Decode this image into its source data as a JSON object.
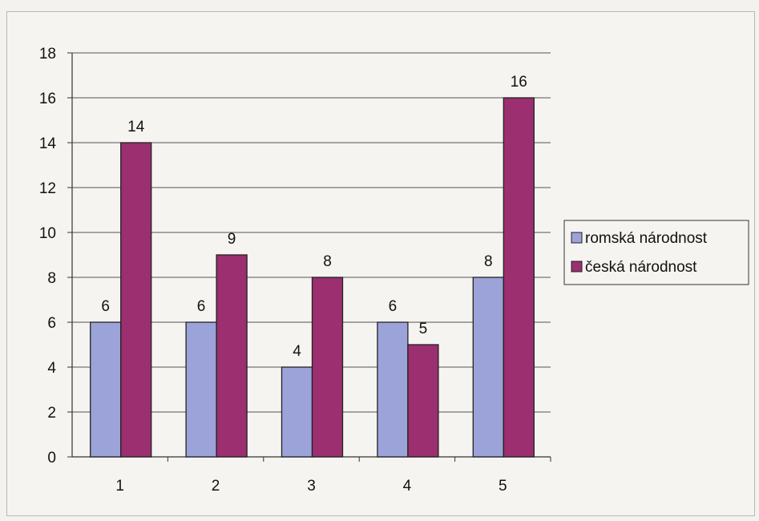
{
  "chart_data": {
    "type": "bar",
    "title": "",
    "xlabel": "",
    "ylabel": "",
    "categories": [
      "1",
      "2",
      "3",
      "4",
      "5"
    ],
    "series": [
      {
        "name": "romská národnost",
        "values": [
          6,
          6,
          4,
          6,
          8
        ],
        "color": "#9ca3d9"
      },
      {
        "name": "česká národnost",
        "values": [
          14,
          9,
          8,
          5,
          16
        ],
        "color": "#9b2f6f"
      }
    ],
    "ylim": [
      0,
      18
    ],
    "yticks": [
      0,
      2,
      4,
      6,
      8,
      10,
      12,
      14,
      16,
      18
    ],
    "grid": true,
    "legend_position": "right",
    "data_labels": true
  }
}
